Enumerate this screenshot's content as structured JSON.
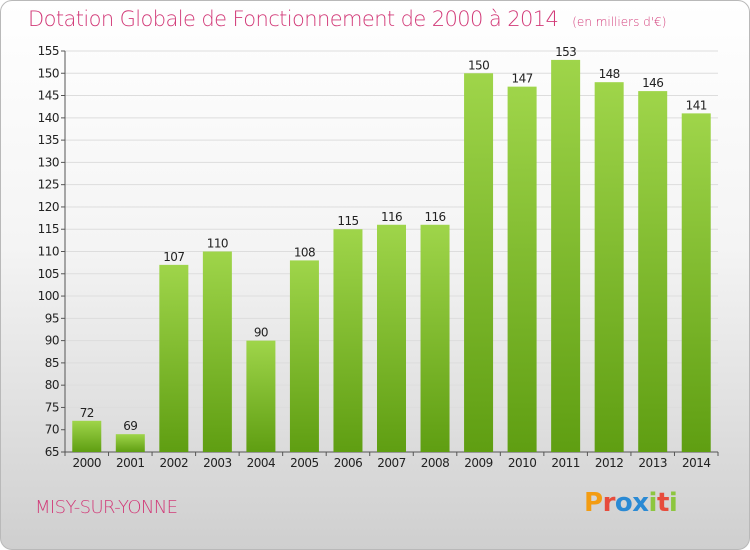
{
  "title": "Dotation Globale de Fonctionnement de 2000 à 2014",
  "unit": "(en milliers d'€)",
  "commune": "MISY-SUR-YONNE",
  "logo": {
    "letters": [
      "P",
      "r",
      "o",
      "x",
      "i",
      "t",
      "i"
    ],
    "colors": [
      "#f39c12",
      "#e74c3c",
      "#2a8ad4",
      "#2a8ad4",
      "#8dc63f",
      "#e74c3c",
      "#8dc63f"
    ]
  },
  "colors": {
    "title": "#d23a78",
    "bar_top": "#9fd54a",
    "bar_bottom": "#5f9e12",
    "grid": "#dddddd"
  },
  "chart_data": {
    "type": "bar",
    "categories": [
      "2000",
      "2001",
      "2002",
      "2003",
      "2004",
      "2005",
      "2006",
      "2007",
      "2008",
      "2009",
      "2010",
      "2011",
      "2012",
      "2013",
      "2014"
    ],
    "values": [
      72,
      69,
      107,
      110,
      90,
      108,
      115,
      116,
      116,
      150,
      147,
      153,
      148,
      146,
      141
    ],
    "title": "Dotation Globale de Fonctionnement de 2000 à 2014",
    "ylabel": "",
    "xlabel": "",
    "ylim": [
      65,
      155
    ],
    "yticks": [
      65,
      70,
      75,
      80,
      85,
      90,
      95,
      100,
      105,
      110,
      115,
      120,
      125,
      130,
      135,
      140,
      145,
      150,
      155
    ],
    "grid": true,
    "legend": "none"
  }
}
